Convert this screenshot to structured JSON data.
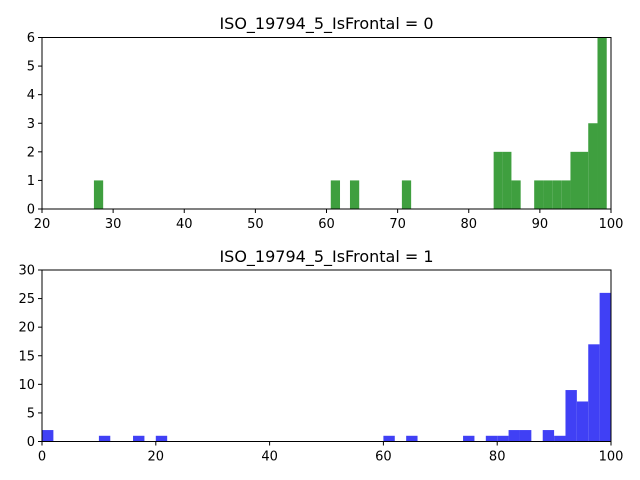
{
  "chart_data": [
    {
      "type": "bar",
      "title": "ISO_19794_5_IsFrontal = 0",
      "xlim": [
        20,
        100
      ],
      "ylim": [
        0,
        6
      ],
      "xticks": [
        "20",
        "30",
        "40",
        "50",
        "60",
        "70",
        "80",
        "90",
        "100"
      ],
      "yticks": [
        "0",
        "1",
        "2",
        "3",
        "4",
        "5",
        "6"
      ],
      "color": "#3f9f3f",
      "grid": false,
      "bins": [
        {
          "x0": 27.3,
          "x1": 28.6,
          "count": 1
        },
        {
          "x0": 60.6,
          "x1": 61.9,
          "count": 1
        },
        {
          "x0": 63.3,
          "x1": 64.6,
          "count": 1
        },
        {
          "x0": 70.6,
          "x1": 71.9,
          "count": 1
        },
        {
          "x0": 83.5,
          "x1": 84.8,
          "count": 2
        },
        {
          "x0": 84.8,
          "x1": 86.0,
          "count": 2
        },
        {
          "x0": 86.0,
          "x1": 87.3,
          "count": 1
        },
        {
          "x0": 89.2,
          "x1": 90.5,
          "count": 1
        },
        {
          "x0": 90.5,
          "x1": 91.8,
          "count": 1
        },
        {
          "x0": 91.8,
          "x1": 93.0,
          "count": 1
        },
        {
          "x0": 93.0,
          "x1": 94.3,
          "count": 1
        },
        {
          "x0": 94.3,
          "x1": 95.5,
          "count": 2
        },
        {
          "x0": 95.5,
          "x1": 96.8,
          "count": 2
        },
        {
          "x0": 96.8,
          "x1": 98.1,
          "count": 3
        },
        {
          "x0": 98.1,
          "x1": 99.4,
          "count": 6
        }
      ]
    },
    {
      "type": "bar",
      "title": "ISO_19794_5_IsFrontal = 1",
      "xlim": [
        0,
        100
      ],
      "ylim": [
        0,
        30
      ],
      "xticks": [
        "0",
        "20",
        "40",
        "60",
        "80",
        "100"
      ],
      "yticks": [
        "0",
        "5",
        "10",
        "15",
        "20",
        "25",
        "30"
      ],
      "color": "#4040f5",
      "grid": false,
      "bins": [
        {
          "x0": 0,
          "x1": 2,
          "count": 2
        },
        {
          "x0": 10,
          "x1": 12,
          "count": 1
        },
        {
          "x0": 16,
          "x1": 18,
          "count": 1
        },
        {
          "x0": 20,
          "x1": 22,
          "count": 1
        },
        {
          "x0": 60,
          "x1": 62,
          "count": 1
        },
        {
          "x0": 64,
          "x1": 66,
          "count": 1
        },
        {
          "x0": 74,
          "x1": 76,
          "count": 1
        },
        {
          "x0": 78,
          "x1": 80,
          "count": 1
        },
        {
          "x0": 80,
          "x1": 82,
          "count": 1
        },
        {
          "x0": 82,
          "x1": 84,
          "count": 2
        },
        {
          "x0": 84,
          "x1": 86,
          "count": 2
        },
        {
          "x0": 88,
          "x1": 90,
          "count": 2
        },
        {
          "x0": 90,
          "x1": 92,
          "count": 1
        },
        {
          "x0": 92,
          "x1": 94,
          "count": 9
        },
        {
          "x0": 94,
          "x1": 96,
          "count": 7
        },
        {
          "x0": 96,
          "x1": 98,
          "count": 17
        },
        {
          "x0": 98,
          "x1": 100,
          "count": 26
        }
      ]
    }
  ]
}
